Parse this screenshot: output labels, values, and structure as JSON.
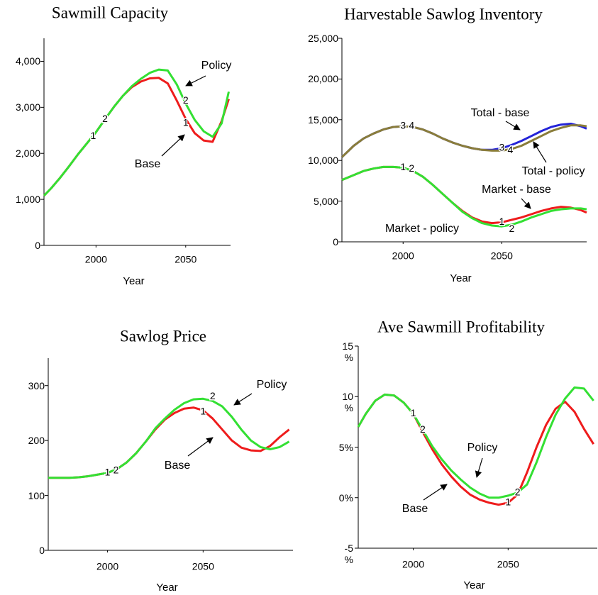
{
  "chart_data": [
    {
      "type": "line",
      "title": "Sawmill Capacity",
      "x_label": "Year",
      "x": [
        1971,
        1975,
        1980,
        1985,
        1990,
        1995,
        2000,
        2005,
        2010,
        2015,
        2020,
        2025,
        2030,
        2035,
        2040,
        2045,
        2050,
        2055,
        2060,
        2065,
        2070,
        2074
      ],
      "xlim": [
        1971,
        2075
      ],
      "xticks": [
        2000,
        2050
      ],
      "ylim": [
        0,
        4500
      ],
      "yticks": [
        0,
        {
          "value": 1000,
          "label": "1,000"
        },
        {
          "value": 2000,
          "label": "2,000"
        },
        {
          "value": 3000,
          "label": "3,000"
        },
        {
          "value": 4000,
          "label": "4,000"
        }
      ],
      "series": [
        {
          "name": "Base",
          "marker": "1",
          "color": "#ee1c1c",
          "values": [
            1080,
            1240,
            1470,
            1720,
            1980,
            2220,
            2460,
            2740,
            3010,
            3250,
            3440,
            3560,
            3630,
            3640,
            3520,
            3150,
            2750,
            2440,
            2280,
            2250,
            2700,
            3180
          ]
        },
        {
          "name": "Policy",
          "marker": "2",
          "color": "#33e033",
          "values": [
            1080,
            1240,
            1470,
            1720,
            1980,
            2220,
            2460,
            2740,
            3010,
            3250,
            3460,
            3620,
            3750,
            3820,
            3800,
            3500,
            3080,
            2730,
            2480,
            2360,
            2650,
            3340
          ]
        }
      ]
    },
    {
      "type": "line",
      "title": "Harvestable Sawlog Inventory",
      "x_label": "Year",
      "x": [
        1969,
        1975,
        1980,
        1985,
        1990,
        1995,
        2000,
        2005,
        2010,
        2015,
        2020,
        2025,
        2030,
        2035,
        2040,
        2045,
        2050,
        2055,
        2060,
        2065,
        2070,
        2075,
        2080,
        2085,
        2090,
        2093
      ],
      "xlim": [
        1969,
        2093
      ],
      "xticks": [
        2000,
        2050
      ],
      "ylim": [
        0,
        25000
      ],
      "yticks": [
        0,
        {
          "value": 5000,
          "label": "5,000"
        },
        {
          "value": 10000,
          "label": "10,000"
        },
        {
          "value": 15000,
          "label": "15,000"
        },
        {
          "value": 20000,
          "label": "20,000"
        },
        {
          "value": 25000,
          "label": "25,000"
        }
      ],
      "series": [
        {
          "name": "Market - base",
          "marker": "1",
          "color": "#ee1c1c",
          "values": [
            7600,
            8200,
            8700,
            9000,
            9200,
            9200,
            9100,
            8700,
            8000,
            7000,
            5900,
            4800,
            3800,
            3000,
            2500,
            2300,
            2400,
            2700,
            3000,
            3400,
            3800,
            4100,
            4300,
            4200,
            3900,
            3600
          ]
        },
        {
          "name": "Market - policy",
          "marker": "2",
          "color": "#33e033",
          "values": [
            7600,
            8200,
            8700,
            9000,
            9200,
            9200,
            9100,
            8700,
            8000,
            7000,
            5900,
            4800,
            3700,
            2900,
            2300,
            2000,
            1900,
            2100,
            2500,
            3000,
            3400,
            3800,
            4000,
            4100,
            4100,
            4000
          ]
        },
        {
          "name": "Total - base",
          "marker": "3",
          "color": "#2424d8",
          "values": [
            10400,
            11800,
            12700,
            13300,
            13800,
            14100,
            14200,
            14100,
            13800,
            13300,
            12700,
            12200,
            11800,
            11500,
            11300,
            11300,
            11500,
            11900,
            12400,
            13000,
            13600,
            14100,
            14400,
            14500,
            14200,
            13900
          ]
        },
        {
          "name": "Total - policy",
          "marker": "4",
          "color": "#8a7d3a",
          "values": [
            10400,
            11800,
            12700,
            13300,
            13800,
            14100,
            14200,
            14100,
            13800,
            13300,
            12700,
            12200,
            11800,
            11500,
            11300,
            11200,
            11200,
            11400,
            11800,
            12400,
            13000,
            13600,
            14000,
            14300,
            14300,
            14200
          ]
        }
      ]
    },
    {
      "type": "line",
      "title": "Sawlog Price",
      "x_label": "Year",
      "x": [
        1969,
        1975,
        1980,
        1985,
        1990,
        1995,
        2000,
        2005,
        2010,
        2015,
        2020,
        2025,
        2030,
        2035,
        2040,
        2045,
        2050,
        2055,
        2060,
        2065,
        2070,
        2075,
        2080,
        2085,
        2090,
        2095
      ],
      "xlim": [
        1969,
        2097
      ],
      "xticks": [
        2000,
        2050
      ],
      "ylim": [
        0,
        350
      ],
      "yticks": [
        0,
        100,
        200,
        300
      ],
      "series": [
        {
          "name": "Base",
          "marker": "1",
          "color": "#ee1c1c",
          "values": [
            132,
            132,
            132,
            133,
            135,
            138,
            141,
            148,
            160,
            177,
            198,
            220,
            238,
            250,
            258,
            260,
            255,
            240,
            220,
            200,
            187,
            182,
            181,
            190,
            206,
            220
          ]
        },
        {
          "name": "Policy",
          "marker": "2",
          "color": "#33e033",
          "values": [
            132,
            132,
            132,
            133,
            135,
            138,
            141,
            148,
            160,
            177,
            198,
            222,
            240,
            256,
            268,
            275,
            276,
            272,
            262,
            243,
            220,
            200,
            188,
            184,
            188,
            198
          ]
        }
      ]
    },
    {
      "type": "line",
      "title": "Ave Sawmill Profitability",
      "x_label": "Year",
      "x": [
        1971,
        1975,
        1980,
        1985,
        1990,
        1995,
        2000,
        2005,
        2010,
        2015,
        2020,
        2025,
        2030,
        2035,
        2040,
        2045,
        2050,
        2055,
        2060,
        2065,
        2070,
        2075,
        2080,
        2085,
        2090,
        2095
      ],
      "xlim": [
        1971,
        2097
      ],
      "xticks": [
        2000,
        2050
      ],
      "ylim": [
        -5,
        15
      ],
      "yticks": [
        {
          "value": -5,
          "label": "-5 %"
        },
        {
          "value": 0,
          "label": "0%"
        },
        {
          "value": 5,
          "label": "5%"
        },
        {
          "value": 10,
          "label": "10 %"
        },
        {
          "value": 15,
          "label": "15 %"
        }
      ],
      "series": [
        {
          "name": "Base",
          "marker": "1",
          "color": "#ee1c1c",
          "values": [
            7.0,
            8.3,
            9.6,
            10.2,
            10.1,
            9.4,
            8.3,
            6.5,
            4.8,
            3.3,
            2.1,
            1.1,
            0.3,
            -0.2,
            -0.5,
            -0.7,
            -0.5,
            0.3,
            2.5,
            5.0,
            7.2,
            8.8,
            9.5,
            8.5,
            6.8,
            5.3
          ]
        },
        {
          "name": "Policy",
          "marker": "2",
          "color": "#33e033",
          "values": [
            7.0,
            8.3,
            9.6,
            10.2,
            10.1,
            9.4,
            8.3,
            6.7,
            5.1,
            3.8,
            2.7,
            1.8,
            1.0,
            0.4,
            0.0,
            0.0,
            0.2,
            0.5,
            1.3,
            3.5,
            6.0,
            8.2,
            9.8,
            10.9,
            10.8,
            9.6
          ]
        }
      ]
    }
  ]
}
